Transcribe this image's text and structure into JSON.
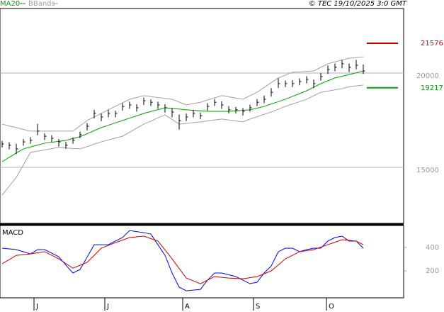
{
  "chart_data": [
    {
      "type": "ohlc",
      "source": "© TEC 19/10/2025 3:0 GMT",
      "close": [
        16240,
        16170,
        15980,
        16350,
        16430,
        16920,
        16650,
        16540,
        16350,
        16170,
        16430,
        16730,
        17180,
        17860,
        17670,
        17860,
        17860,
        18230,
        18310,
        18160,
        18530,
        18450,
        18310,
        18160,
        17930,
        17480,
        17670,
        17860,
        17740,
        18230,
        18450,
        18310,
        18050,
        18050,
        17970,
        18160,
        18450,
        18610,
        18980,
        19440,
        19440,
        19440,
        19550,
        19660,
        19440,
        19810,
        20190,
        20300,
        20490,
        20300,
        20410,
        20110
      ],
      "high": [
        16400,
        16330,
        16250,
        16500,
        16600,
        17300,
        16800,
        16700,
        16500,
        16350,
        16580,
        16900,
        17350,
        18050,
        17850,
        18050,
        18000,
        18400,
        18480,
        18350,
        18700,
        18600,
        18480,
        18350,
        18150,
        17800,
        17850,
        18050,
        17900,
        18400,
        18620,
        18500,
        18250,
        18200,
        18150,
        18320,
        18620,
        18800,
        19200,
        19720,
        19600,
        19620,
        19720,
        19830,
        19650,
        20000,
        20400,
        20500,
        20680,
        20500,
        20700,
        20450
      ],
      "low": [
        16050,
        15950,
        15700,
        16150,
        16250,
        16700,
        16450,
        16350,
        16100,
        15980,
        16250,
        16550,
        16950,
        17600,
        17450,
        17650,
        17650,
        18000,
        18100,
        17950,
        18300,
        18250,
        18100,
        17900,
        17650,
        17000,
        17450,
        17650,
        17550,
        18000,
        18250,
        18100,
        17850,
        17850,
        17750,
        17950,
        18250,
        18400,
        18750,
        19200,
        19250,
        19250,
        19350,
        19450,
        19200,
        19600,
        19950,
        20100,
        20250,
        20050,
        20200,
        19950
      ],
      "color": "#000000",
      "overlays": [
        {
          "name": "MA20",
          "color": "#00a000",
          "values": [
            15300,
            15530,
            15760,
            15980,
            16080,
            16180,
            16280,
            16330,
            16380,
            16430,
            16530,
            16620,
            16780,
            16950,
            17110,
            17230,
            17360,
            17480,
            17610,
            17730,
            17860,
            17960,
            18060,
            18160,
            18120,
            18090,
            18050,
            18020,
            18000,
            17970,
            17970,
            17970,
            17970,
            18000,
            18020,
            18050,
            18140,
            18230,
            18360,
            18480,
            18610,
            18760,
            18910,
            19060,
            19250,
            19440,
            19590,
            19740,
            19830,
            19920,
            20010,
            20110
          ]
        },
        {
          "name": "BBands",
          "color": "#a0a0a0",
          "upper": [
            17290,
            17200,
            17110,
            17010,
            16920,
            16920,
            16920,
            16920,
            16920,
            16920,
            16920,
            17200,
            17480,
            17670,
            17860,
            18050,
            18240,
            18420,
            18610,
            18700,
            18800,
            18750,
            18700,
            18660,
            18610,
            18460,
            18310,
            18380,
            18450,
            18570,
            18680,
            18800,
            18740,
            18670,
            18610,
            18800,
            18980,
            19230,
            19490,
            19740,
            19890,
            20040,
            20060,
            20090,
            20110,
            20300,
            20490,
            20590,
            20690,
            20790,
            20820,
            20860
          ],
          "lower": [
            13530,
            14000,
            14470,
            15130,
            15790,
            15860,
            15920,
            15990,
            16050,
            16030,
            16000,
            15980,
            16100,
            16230,
            16350,
            16450,
            16550,
            16650,
            16860,
            17080,
            17290,
            17450,
            17620,
            17780,
            17540,
            17290,
            17330,
            17370,
            17410,
            17460,
            17510,
            17560,
            17510,
            17460,
            17410,
            17560,
            17680,
            17810,
            17930,
            18080,
            18230,
            18360,
            18480,
            18610,
            18800,
            18980,
            19040,
            19110,
            19170,
            19270,
            19320,
            19360
          ]
        }
      ],
      "ylim": [
        12030,
        23420
      ],
      "yticks": [
        15000,
        20000
      ],
      "grid": true,
      "markers": [
        {
          "value": 21576,
          "color": "#cc0000"
        },
        {
          "value": 19217,
          "color": "#00a000"
        }
      ]
    },
    {
      "type": "line",
      "title": "MACD",
      "series": [
        {
          "color": "#0000ff",
          "values": [
            394,
            388,
            382,
            364,
            345,
            382,
            382,
            352,
            321,
            250,
            182,
            212,
            318,
            424,
            424,
            424,
            455,
            485,
            545,
            536,
            527,
            515,
            424,
            333,
            182,
            61,
            30,
            36,
            42,
            121,
            182,
            182,
            167,
            152,
            121,
            91,
            103,
            182,
            242,
            364,
            394,
            394,
            364,
            382,
            394,
            394,
            455,
            485,
            497,
            455,
            455,
            394
          ]
        },
        {
          "color": "#cc0000",
          "values": [
            261,
            297,
            333,
            339,
            345,
            355,
            364,
            333,
            303,
            263,
            224,
            248,
            273,
            333,
            394,
            418,
            442,
            463,
            485,
            491,
            497,
            476,
            455,
            379,
            303,
            221,
            139,
            115,
            91,
            121,
            152,
            145,
            139,
            136,
            133,
            142,
            152,
            176,
            200,
            251,
            303,
            333,
            364,
            373,
            382,
            403,
            424,
            445,
            467,
            461,
            455,
            424
          ]
        }
      ],
      "ylim": [
        -30,
        588
      ],
      "yticks": [
        200,
        400
      ],
      "xticks": [
        {
          "value": 4.5,
          "label": "J"
        },
        {
          "value": 14.5,
          "label": "J"
        },
        {
          "value": 25.5,
          "label": "A"
        },
        {
          "value": 35.5,
          "label": "S"
        },
        {
          "value": 45.8,
          "label": "O"
        }
      ]
    }
  ]
}
